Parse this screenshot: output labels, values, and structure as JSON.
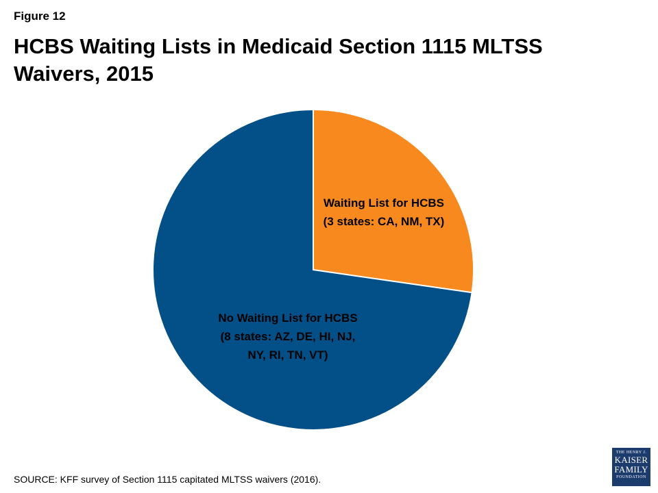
{
  "figure_label": "Figure 12",
  "title": "HCBS Waiting Lists in Medicaid Section 1115 MLTSS Waivers, 2015",
  "source": "SOURCE: KFF survey of Section 1115 capitated MLTSS waivers (2016).",
  "logo": [
    "THE HENRY J.",
    "KAISER",
    "FAMILY",
    "FOUNDATION"
  ],
  "chart_data": {
    "type": "pie",
    "title": "HCBS Waiting Lists in Medicaid Section 1115 MLTSS Waivers, 2015",
    "slices": [
      {
        "label_lines": [
          "Waiting List for HCBS",
          "(3 states: CA, NM, TX)"
        ],
        "value": 3,
        "color": "#f7891f"
      },
      {
        "label_lines": [
          "No Waiting List for HCBS",
          "(8 states:  AZ, DE, HI, NJ,",
          "NY, RI, TN, VT)"
        ],
        "value": 8,
        "color": "#034f87"
      }
    ]
  }
}
